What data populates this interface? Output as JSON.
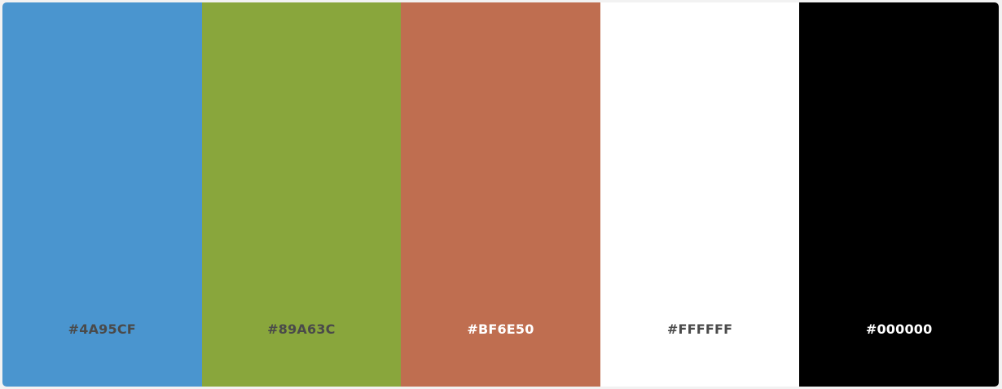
{
  "palette": {
    "swatches": [
      {
        "label": "#4A95CF",
        "color": "#4A95CF",
        "text_color": "#4a4a4a"
      },
      {
        "label": "#89A63C",
        "color": "#89A63C",
        "text_color": "#4a4a4a"
      },
      {
        "label": "#BF6E50",
        "color": "#BF6E50",
        "text_color": "#ffffff"
      },
      {
        "label": "#FFFFFF",
        "color": "#FFFFFF",
        "text_color": "#4a4a4a"
      },
      {
        "label": "#000000",
        "color": "#000000",
        "text_color": "#ffffff"
      }
    ]
  }
}
